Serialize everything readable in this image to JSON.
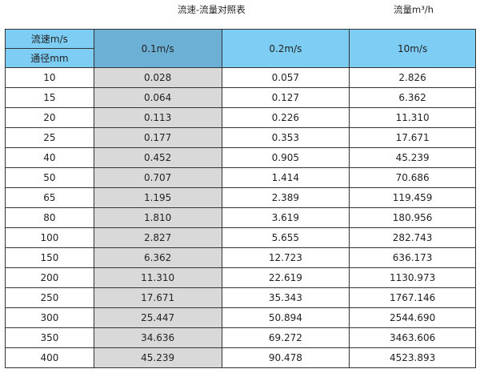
{
  "title": "流速-流量对照表",
  "unit_label": "流量m³/h",
  "colors": {
    "header": "#7dcdf5",
    "header_highlight": "#6cb0d5",
    "highlight_column": "#d9d9d9"
  },
  "header": {
    "corner_top": "流速m/s",
    "corner_bottom": "通径mm",
    "speeds": [
      "0.1m/s",
      "0.2m/s",
      "10m/s"
    ]
  },
  "rows": [
    [
      "10",
      "0.028",
      "0.057",
      "2.826"
    ],
    [
      "15",
      "0.064",
      "0.127",
      "6.362"
    ],
    [
      "20",
      "0.113",
      "0.226",
      "11.310"
    ],
    [
      "25",
      "0.177",
      "0.353",
      "17.671"
    ],
    [
      "40",
      "0.452",
      "0.905",
      "45.239"
    ],
    [
      "50",
      "0.707",
      "1.414",
      "70.686"
    ],
    [
      "65",
      "1.195",
      "2.389",
      "119.459"
    ],
    [
      "80",
      "1.810",
      "3.619",
      "180.956"
    ],
    [
      "100",
      "2.827",
      "5.655",
      "282.743"
    ],
    [
      "150",
      "6.362",
      "12.723",
      "636.173"
    ],
    [
      "200",
      "11.310",
      "22.619",
      "1130.973"
    ],
    [
      "250",
      "17.671",
      "35.343",
      "1767.146"
    ],
    [
      "300",
      "25.447",
      "50.894",
      "2544.690"
    ],
    [
      "350",
      "34.636",
      "69.272",
      "3463.606"
    ],
    [
      "400",
      "45.239",
      "90.478",
      "4523.893"
    ]
  ]
}
